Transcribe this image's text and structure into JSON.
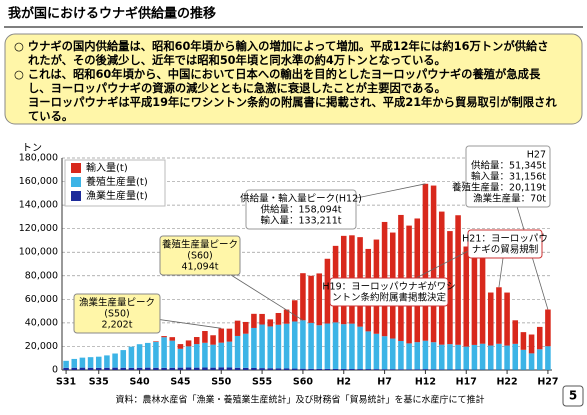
{
  "header": {
    "title": "我が国におけるウナギ供給量の推移"
  },
  "info": {
    "lines": [
      "○ ウナギの国内供給量は、昭和60年頃から輸入の増加によって増加。平成12年には約16万トンが供給さ",
      "れたが、その後減少し、近年では昭和50年頃と同水準の約4万トンとなっている。",
      "○ これは、昭和60年頃から、中国において日本への輸出を目的としたヨーロッパウナギの養殖が急成長",
      "し、ヨーロッパウナギの資源の減少とともに急激に衰退したことが主要因である。",
      "ヨーロッパウナギは平成19年にワシントン条約の附属書に掲載され、平成21年から貿易取引が制限され",
      "ている。"
    ]
  },
  "chart_data": {
    "type": "stacked_bar",
    "y_label": "トン",
    "categories": [
      "S31",
      null,
      null,
      null,
      "S35",
      null,
      null,
      null,
      null,
      "S40",
      null,
      null,
      null,
      null,
      "S45",
      null,
      null,
      null,
      null,
      "S50",
      null,
      null,
      null,
      null,
      "S55",
      null,
      null,
      null,
      null,
      "S60",
      null,
      null,
      null,
      null,
      "H2",
      null,
      null,
      null,
      null,
      "H7",
      null,
      null,
      null,
      null,
      "H12",
      null,
      null,
      null,
      null,
      "H17",
      null,
      null,
      null,
      null,
      "H22",
      null,
      null,
      null,
      null,
      "H27"
    ],
    "series": [
      {
        "name": "輸入量(t)",
        "color": "#d8281c",
        "values": [
          0,
          0,
          0,
          0,
          0,
          0,
          0,
          0,
          0,
          0,
          0,
          500,
          1000,
          3000,
          4000,
          5000,
          6000,
          10000,
          8000,
          12000,
          11000,
          13000,
          10000,
          12000,
          9000,
          6000,
          10000,
          12000,
          18000,
          40000,
          40000,
          44000,
          55000,
          65000,
          75000,
          75000,
          76000,
          70000,
          80000,
          97000,
          90000,
          107000,
          100000,
          105000,
          133211,
          133000,
          113000,
          96000,
          110000,
          85000,
          75000,
          85000,
          45000,
          48000,
          45000,
          20000,
          15000,
          16000,
          19000,
          31156
        ]
      },
      {
        "name": "養殖生産量(t)",
        "color": "#3cb4e6",
        "values": [
          6000,
          7500,
          8500,
          9000,
          9500,
          10500,
          12000,
          15000,
          18000,
          20000,
          21000,
          22000,
          26000,
          23000,
          16000,
          18000,
          20000,
          21000,
          19500,
          21000,
          22000,
          27000,
          29000,
          34000,
          37000,
          35500,
          37000,
          38000,
          40000,
          41094,
          39000,
          37000,
          38500,
          39500,
          38000,
          38500,
          36000,
          32000,
          30000,
          28000,
          26000,
          24000,
          22000,
          23000,
          24118,
          23000,
          21000,
          21500,
          21000,
          19500,
          21000,
          22000,
          20500,
          22000,
          20500,
          22000,
          17000,
          14000,
          17500,
          20119
        ]
      },
      {
        "name": "漁業生産量(t)",
        "color": "#1c2a9a",
        "values": [
          1800,
          1900,
          2000,
          1900,
          1800,
          1900,
          2000,
          1900,
          1800,
          1900,
          2000,
          1900,
          1800,
          1900,
          2000,
          2100,
          2000,
          2100,
          2000,
          2202,
          2100,
          1900,
          1800,
          1700,
          1600,
          1500,
          1400,
          1300,
          1200,
          1100,
          1000,
          1000,
          950,
          900,
          900,
          850,
          800,
          800,
          750,
          700,
          700,
          650,
          600,
          650,
          765,
          600,
          500,
          450,
          400,
          350,
          300,
          300,
          280,
          250,
          250,
          200,
          150,
          120,
          100,
          70
        ]
      }
    ],
    "ylim": [
      0,
      180000
    ],
    "yticks": [
      0,
      {
        "value": 20000,
        "label": "20,000"
      },
      {
        "value": 40000,
        "label": "40,000"
      },
      {
        "value": 60000,
        "label": "60,000"
      },
      {
        "value": 80000,
        "label": "80,000"
      },
      {
        "value": 100000,
        "label": "100,000"
      },
      {
        "value": 120000,
        "label": "120,000"
      },
      {
        "value": 140000,
        "label": "140,000"
      },
      {
        "value": 160000,
        "label": "160,000"
      },
      {
        "value": 180000,
        "label": "180,000"
      }
    ],
    "grid": true,
    "legend": "upper left",
    "annotations": [
      {
        "lines": [
          "供給量・輸入量ピーク(H12)",
          "供給量：158,094t",
          "輸入量：133,211t"
        ]
      },
      {
        "lines": [
          "H27",
          "供給量：51,345t",
          "輸入量：31,156t",
          "養殖生産量：20,119t",
          "漁業生産量：70t"
        ]
      },
      {
        "lines": [
          "養殖生産量ピーク",
          "(S60)",
          "41,094t"
        ]
      },
      {
        "lines": [
          "漁業生産量ピーク",
          "(S50)",
          "2,202t"
        ]
      },
      {
        "lines": [
          "H19：ヨーロッパウナギがワシ",
          "ントン条約附属書掲載決定"
        ]
      },
      {
        "lines": [
          "H21：ヨーロッパウ",
          "ナギの貿易規制"
        ]
      }
    ]
  },
  "footer": {
    "source": "資料：農林水産省「漁業・養殖業生産統計」及び財務省「貿易統計」を基に水産庁にて推計",
    "page": "5"
  }
}
